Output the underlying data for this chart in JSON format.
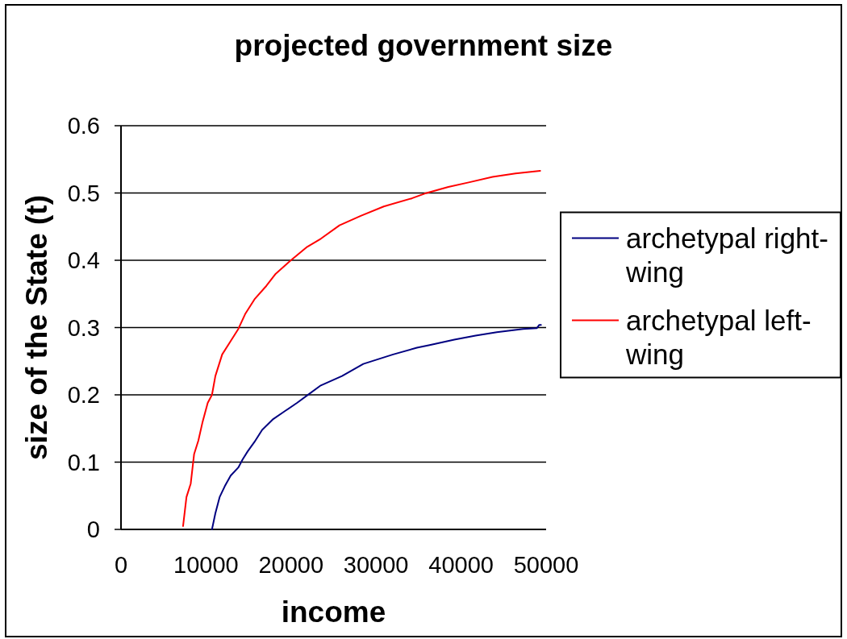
{
  "chart_data": {
    "type": "line",
    "title": "projected government size",
    "xlabel": "income",
    "ylabel": "size of the State (t)",
    "xlim": [
      0,
      50000
    ],
    "xticks": [
      0,
      10000,
      20000,
      30000,
      40000,
      50000
    ],
    "ylim": [
      0,
      0.6
    ],
    "yticks": [
      0,
      0.1,
      0.2,
      0.3,
      0.4,
      0.5,
      0.6
    ],
    "grid": "y",
    "legend": "right",
    "series": [
      {
        "name": "archetypal right-wing",
        "color": "#000080",
        "x": [
          10700,
          11100,
          11600,
          12200,
          12900,
          13800,
          14300,
          14900,
          15700,
          16600,
          17900,
          19300,
          20700,
          22100,
          23500,
          26000,
          28500,
          32000,
          34800,
          36300,
          39200,
          41700,
          44200,
          47300,
          48900,
          49200,
          49400
        ],
        "values": [
          0,
          0.024,
          0.048,
          0.064,
          0.08,
          0.092,
          0.104,
          0.116,
          0.13,
          0.148,
          0.164,
          0.176,
          0.188,
          0.201,
          0.214,
          0.228,
          0.246,
          0.26,
          0.27,
          0.274,
          0.282,
          0.288,
          0.293,
          0.298,
          0.299,
          0.304,
          0.304
        ]
      },
      {
        "name": "archetypal left-wing",
        "color": "#ff0000",
        "x": [
          7300,
          7700,
          8200,
          8600,
          9100,
          9600,
          10200,
          10700,
          11100,
          11900,
          12900,
          13800,
          14600,
          15700,
          17100,
          18200,
          19900,
          21900,
          23500,
          25700,
          28200,
          30900,
          34200,
          35700,
          38500,
          41000,
          43700,
          46400,
          49300
        ],
        "values": [
          0.005,
          0.048,
          0.068,
          0.112,
          0.132,
          0.16,
          0.188,
          0.2,
          0.228,
          0.26,
          0.28,
          0.298,
          0.32,
          0.342,
          0.362,
          0.38,
          0.399,
          0.42,
          0.432,
          0.452,
          0.466,
          0.48,
          0.492,
          0.499,
          0.509,
          0.516,
          0.524,
          0.529,
          0.533
        ]
      }
    ]
  }
}
